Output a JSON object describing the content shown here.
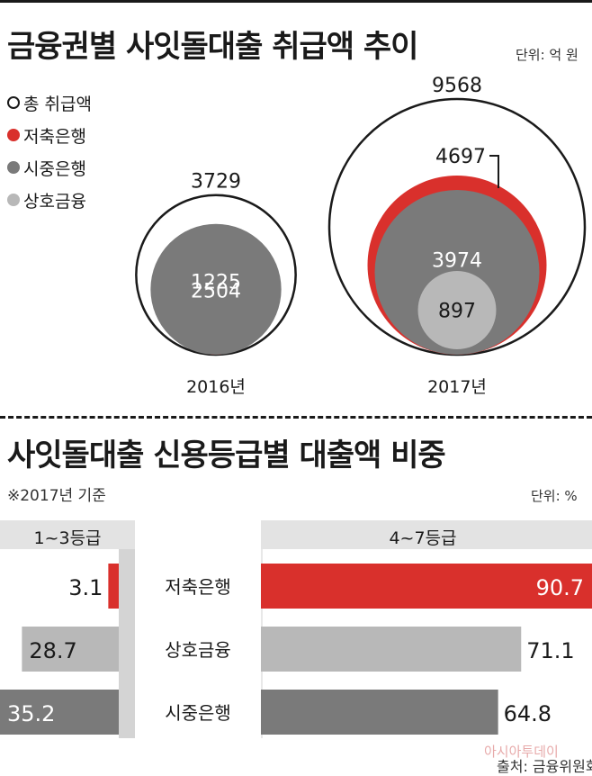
{
  "section1": {
    "title": "금융권별 사잇돌대출 취급액 추이",
    "unit": "단위: 억 원"
  },
  "legend": [
    {
      "label": "총 취급액",
      "color": "#ffffff",
      "border": "#1a1a1a"
    },
    {
      "label": "저축은행",
      "color": "#d9302c",
      "border": "#d9302c"
    },
    {
      "label": "시중은행",
      "color": "#7a7a7a",
      "border": "#7a7a7a"
    },
    {
      "label": "상호금융",
      "color": "#b8b8b8",
      "border": "#b8b8b8"
    }
  ],
  "section2": {
    "title": "사잇돌대출 신용등급별 대출액 비중",
    "note": "※2017년 기준",
    "unit": "단위: %",
    "left_header": "1~3등급",
    "right_header": "4~7등급"
  },
  "source": "출처: 금융위원회",
  "watermark": "아시아투데이",
  "chart_data": [
    {
      "type": "bubble",
      "title": "금융권별 사잇돌대출 취급액 추이",
      "unit": "억 원",
      "categories": [
        "2016년",
        "2017년"
      ],
      "series": [
        {
          "name": "총 취급액",
          "values": [
            3729,
            9568
          ]
        },
        {
          "name": "저축은행",
          "values": [
            1225,
            4697
          ]
        },
        {
          "name": "시중은행",
          "values": [
            2504,
            3974
          ]
        },
        {
          "name": "상호금융",
          "values": [
            null,
            897
          ]
        }
      ],
      "colors": {
        "총 취급액": "#ffffff",
        "저축은행": "#d9302c",
        "시중은행": "#7a7a7a",
        "상호금융": "#b8b8b8"
      }
    },
    {
      "type": "bar",
      "orientation": "diverging-horizontal",
      "title": "사잇돌대출 신용등급별 대출액 비중",
      "unit": "%",
      "categories": [
        "저축은행",
        "상호금융",
        "시중은행"
      ],
      "series": [
        {
          "name": "1~3등급",
          "values": [
            3.1,
            28.7,
            35.2
          ]
        },
        {
          "name": "4~7등급",
          "values": [
            90.7,
            71.1,
            64.8
          ]
        }
      ],
      "colors": {
        "저축은행": "#d9302c",
        "상호금융": "#b8b8b8",
        "시중은행": "#7a7a7a"
      }
    }
  ]
}
